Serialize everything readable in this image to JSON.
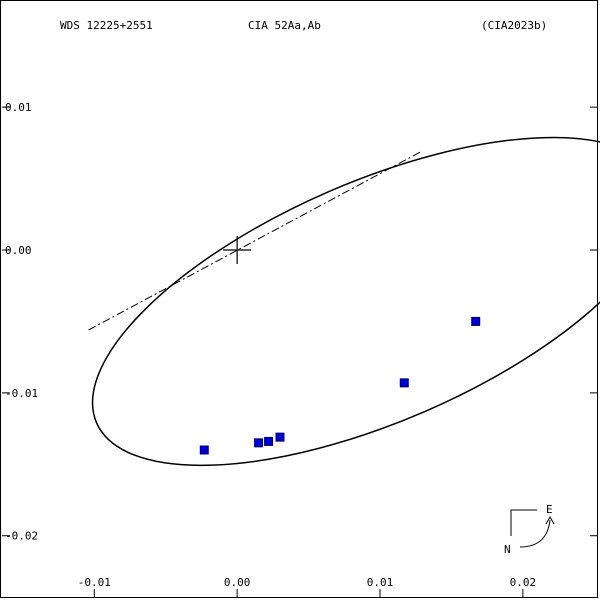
{
  "header": {
    "left": "WDS 12225+2551",
    "center": "CIA  52Aa,Ab",
    "right": "(CIA2023b)"
  },
  "compass": {
    "east": "E",
    "north": "N"
  },
  "chart_data": {
    "type": "scatter",
    "title": "",
    "xlabel": "",
    "ylabel": "",
    "xlim": [
      -0.0166,
      0.0254
    ],
    "ylim": [
      -0.0245,
      0.0175
    ],
    "x_ticks": [
      {
        "value": -0.01,
        "label": "-0.01"
      },
      {
        "value": 0.0,
        "label": "0.00"
      },
      {
        "value": 0.01,
        "label": "0.01"
      },
      {
        "value": 0.02,
        "label": "0.02"
      }
    ],
    "y_ticks": [
      {
        "value": 0.01,
        "label": "0.01"
      },
      {
        "value": 0.0,
        "label": "0.00"
      },
      {
        "value": -0.01,
        "label": "-0.01"
      },
      {
        "value": -0.02,
        "label": "-0.02"
      }
    ],
    "primary": {
      "x": 0.0,
      "y": 0.0
    },
    "line_of_nodes": {
      "x1": -0.0104,
      "y1": -0.0056,
      "x2": 0.0129,
      "y2": 0.0069
    },
    "orbit_ellipse": {
      "cx": 0.0098,
      "cy": -0.0036,
      "rx": 0.0214,
      "ry": 0.0084,
      "angle_deg": 23.4
    },
    "observations": [
      {
        "x": -0.0023,
        "y": -0.014
      },
      {
        "x": 0.0015,
        "y": -0.0135
      },
      {
        "x": 0.0022,
        "y": -0.0134
      },
      {
        "x": 0.003,
        "y": -0.0131
      },
      {
        "x": 0.0117,
        "y": -0.0093
      },
      {
        "x": 0.0167,
        "y": -0.005
      }
    ],
    "marker_color": "#0000cc",
    "marker_edge_color": "#000080",
    "frame_color": "#000000"
  }
}
